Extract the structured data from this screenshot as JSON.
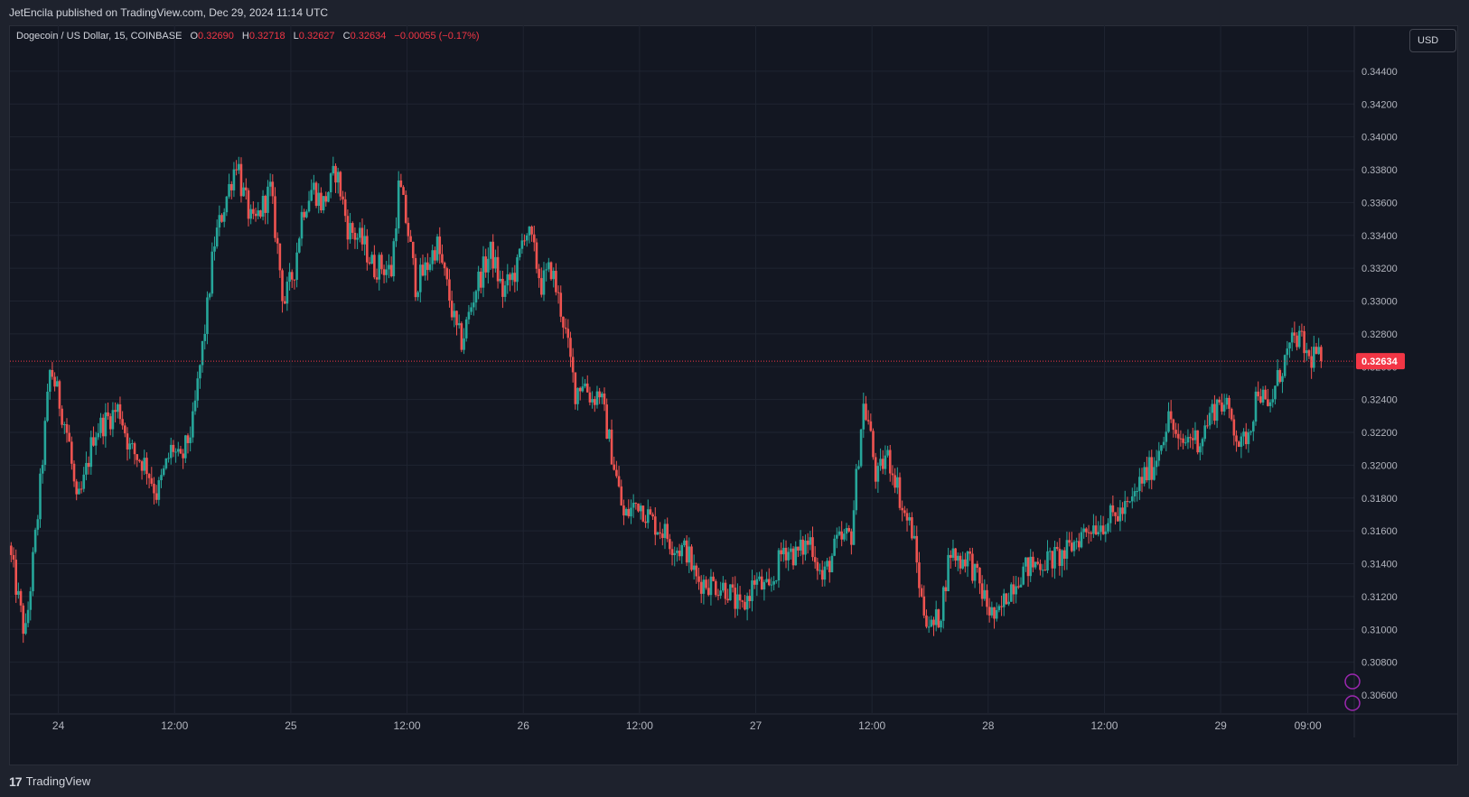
{
  "publish_info": "JetEncila published on TradingView.com, Dec 29, 2024 11:14 UTC",
  "legend": {
    "symbol": "Dogecoin / US Dollar, 15, COINBASE",
    "o_label": "O",
    "o": "0.32690",
    "h_label": "H",
    "h": "0.32718",
    "l_label": "L",
    "l": "0.32627",
    "c_label": "C",
    "c": "0.32634",
    "change": "−0.00055 (−0.17%)"
  },
  "currency": "USD",
  "current_price_label": "0.32634",
  "brand": {
    "logo": "17",
    "name": "TradingView"
  },
  "colors": {
    "up": "#26a69a",
    "down": "#ef5350",
    "price_line": "#f23645",
    "background": "#131722",
    "grid": "#1f2431",
    "text": "#b2b5be",
    "marker_circle": "#9c27b0"
  },
  "icons": [
    "tradingview-logo-icon",
    "alert-marker-icon"
  ],
  "chart_data": {
    "type": "candlestick",
    "title": "Dogecoin / US Dollar, 15, COINBASE",
    "interval": "15",
    "ylim": [
      0.3049,
      0.3457
    ],
    "y_ticks": [
      "0.34400",
      "0.34200",
      "0.34000",
      "0.33800",
      "0.33600",
      "0.33400",
      "0.33200",
      "0.33000",
      "0.32800",
      "0.32600",
      "0.32400",
      "0.32200",
      "0.32000",
      "0.31800",
      "0.31600",
      "0.31400",
      "0.31200",
      "0.31000",
      "0.30800",
      "0.30600"
    ],
    "x_ticks": [
      "24",
      "12:00",
      "25",
      "12:00",
      "26",
      "12:00",
      "27",
      "12:00",
      "28",
      "12:00",
      "29",
      "09:00"
    ],
    "x_tick_hours": [
      24,
      36,
      48,
      60,
      72,
      84,
      96,
      108,
      120,
      132,
      144,
      153
    ],
    "x_range_hours": [
      19.0,
      157.7
    ],
    "current_price": 0.32634,
    "grid": true,
    "key_points": [
      {
        "hour": 19.0,
        "price": 0.3151
      },
      {
        "hour": 20.7,
        "price": 0.3095
      },
      {
        "hour": 22.0,
        "price": 0.317
      },
      {
        "hour": 23.3,
        "price": 0.326
      },
      {
        "hour": 24.4,
        "price": 0.3235
      },
      {
        "hour": 25.2,
        "price": 0.3215
      },
      {
        "hour": 26.0,
        "price": 0.3175
      },
      {
        "hour": 26.6,
        "price": 0.3185
      },
      {
        "hour": 27.8,
        "price": 0.322
      },
      {
        "hour": 30.4,
        "price": 0.3235
      },
      {
        "hour": 31.5,
        "price": 0.321
      },
      {
        "hour": 33.2,
        "price": 0.32
      },
      {
        "hour": 34.3,
        "price": 0.3182
      },
      {
        "hour": 35.9,
        "price": 0.3212
      },
      {
        "hour": 36.7,
        "price": 0.32
      },
      {
        "hour": 38.0,
        "price": 0.3225
      },
      {
        "hour": 39.5,
        "price": 0.3295
      },
      {
        "hour": 40.2,
        "price": 0.3335
      },
      {
        "hour": 42.6,
        "price": 0.3388
      },
      {
        "hour": 43.0,
        "price": 0.337
      },
      {
        "hour": 44.2,
        "price": 0.3345
      },
      {
        "hour": 46.0,
        "price": 0.3368
      },
      {
        "hour": 46.8,
        "price": 0.333
      },
      {
        "hour": 47.4,
        "price": 0.3298
      },
      {
        "hour": 48.5,
        "price": 0.332
      },
      {
        "hour": 49.3,
        "price": 0.3355
      },
      {
        "hour": 50.4,
        "price": 0.337
      },
      {
        "hour": 51.4,
        "price": 0.3358
      },
      {
        "hour": 52.8,
        "price": 0.338
      },
      {
        "hour": 54.0,
        "price": 0.3345
      },
      {
        "hour": 55.6,
        "price": 0.3335
      },
      {
        "hour": 56.7,
        "price": 0.332
      },
      {
        "hour": 57.3,
        "price": 0.3322
      },
      {
        "hour": 58.5,
        "price": 0.3318
      },
      {
        "hour": 59.3,
        "price": 0.3372
      },
      {
        "hour": 60.3,
        "price": 0.334
      },
      {
        "hour": 61.0,
        "price": 0.331
      },
      {
        "hour": 62.1,
        "price": 0.332
      },
      {
        "hour": 63.2,
        "price": 0.3335
      },
      {
        "hour": 64.2,
        "price": 0.331
      },
      {
        "hour": 65.2,
        "price": 0.3282
      },
      {
        "hour": 65.8,
        "price": 0.3275
      },
      {
        "hour": 67.3,
        "price": 0.331
      },
      {
        "hour": 68.8,
        "price": 0.333
      },
      {
        "hour": 70.0,
        "price": 0.3305
      },
      {
        "hour": 71.5,
        "price": 0.332
      },
      {
        "hour": 72.3,
        "price": 0.3345
      },
      {
        "hour": 73.0,
        "price": 0.3335
      },
      {
        "hour": 74.0,
        "price": 0.331
      },
      {
        "hour": 75.0,
        "price": 0.332
      },
      {
        "hour": 76.2,
        "price": 0.329
      },
      {
        "hour": 77.5,
        "price": 0.3245
      },
      {
        "hour": 78.3,
        "price": 0.3252
      },
      {
        "hour": 79.2,
        "price": 0.324
      },
      {
        "hour": 80.0,
        "price": 0.3245
      },
      {
        "hour": 81.5,
        "price": 0.32
      },
      {
        "hour": 82.5,
        "price": 0.3168
      },
      {
        "hour": 84.0,
        "price": 0.3178
      },
      {
        "hour": 85.5,
        "price": 0.3165
      },
      {
        "hour": 86.6,
        "price": 0.316
      },
      {
        "hour": 87.8,
        "price": 0.315
      },
      {
        "hour": 89.0,
        "price": 0.3148
      },
      {
        "hour": 90.0,
        "price": 0.313
      },
      {
        "hour": 91.5,
        "price": 0.3128
      },
      {
        "hour": 93.2,
        "price": 0.3125
      },
      {
        "hour": 94.6,
        "price": 0.311
      },
      {
        "hour": 96.0,
        "price": 0.313
      },
      {
        "hour": 97.5,
        "price": 0.3122
      },
      {
        "hour": 99.0,
        "price": 0.315
      },
      {
        "hour": 100.3,
        "price": 0.3145
      },
      {
        "hour": 101.8,
        "price": 0.3155
      },
      {
        "hour": 103.0,
        "price": 0.313
      },
      {
        "hour": 104.5,
        "price": 0.3152
      },
      {
        "hour": 106.0,
        "price": 0.3158
      },
      {
        "hour": 107.2,
        "price": 0.3237
      },
      {
        "hour": 107.8,
        "price": 0.3225
      },
      {
        "hour": 108.6,
        "price": 0.319
      },
      {
        "hour": 109.6,
        "price": 0.3207
      },
      {
        "hour": 110.6,
        "price": 0.3192
      },
      {
        "hour": 111.3,
        "price": 0.3172
      },
      {
        "hour": 112.3,
        "price": 0.316
      },
      {
        "hour": 113.3,
        "price": 0.3115
      },
      {
        "hour": 114.3,
        "price": 0.31
      },
      {
        "hour": 115.2,
        "price": 0.311
      },
      {
        "hour": 116.2,
        "price": 0.3148
      },
      {
        "hour": 117.2,
        "price": 0.3142
      },
      {
        "hour": 118.0,
        "price": 0.3145
      },
      {
        "hour": 119.0,
        "price": 0.313
      },
      {
        "hour": 120.2,
        "price": 0.3112
      },
      {
        "hour": 121.0,
        "price": 0.3105
      },
      {
        "hour": 122.3,
        "price": 0.3125
      },
      {
        "hour": 123.5,
        "price": 0.3135
      },
      {
        "hour": 125.0,
        "price": 0.314
      },
      {
        "hour": 126.8,
        "price": 0.3143
      },
      {
        "hour": 128.0,
        "price": 0.3145
      },
      {
        "hour": 129.3,
        "price": 0.3155
      },
      {
        "hour": 130.6,
        "price": 0.3163
      },
      {
        "hour": 132.0,
        "price": 0.3165
      },
      {
        "hour": 133.5,
        "price": 0.317
      },
      {
        "hour": 134.8,
        "price": 0.3175
      },
      {
        "hour": 136.0,
        "price": 0.3192
      },
      {
        "hour": 137.2,
        "price": 0.32
      },
      {
        "hour": 138.2,
        "price": 0.322
      },
      {
        "hour": 138.9,
        "price": 0.323
      },
      {
        "hour": 139.8,
        "price": 0.321
      },
      {
        "hour": 141.0,
        "price": 0.3218
      },
      {
        "hour": 142.0,
        "price": 0.3215
      },
      {
        "hour": 143.0,
        "price": 0.323
      },
      {
        "hour": 144.0,
        "price": 0.324
      },
      {
        "hour": 145.2,
        "price": 0.323
      },
      {
        "hour": 146.2,
        "price": 0.321
      },
      {
        "hour": 147.2,
        "price": 0.3225
      },
      {
        "hour": 148.0,
        "price": 0.3248
      },
      {
        "hour": 149.0,
        "price": 0.3232
      },
      {
        "hour": 150.0,
        "price": 0.3252
      },
      {
        "hour": 151.0,
        "price": 0.3268
      },
      {
        "hour": 152.0,
        "price": 0.3278
      },
      {
        "hour": 152.7,
        "price": 0.3272
      },
      {
        "hour": 153.3,
        "price": 0.3263
      },
      {
        "hour": 153.9,
        "price": 0.327
      },
      {
        "hour": 154.4,
        "price": 0.3263
      }
    ]
  }
}
